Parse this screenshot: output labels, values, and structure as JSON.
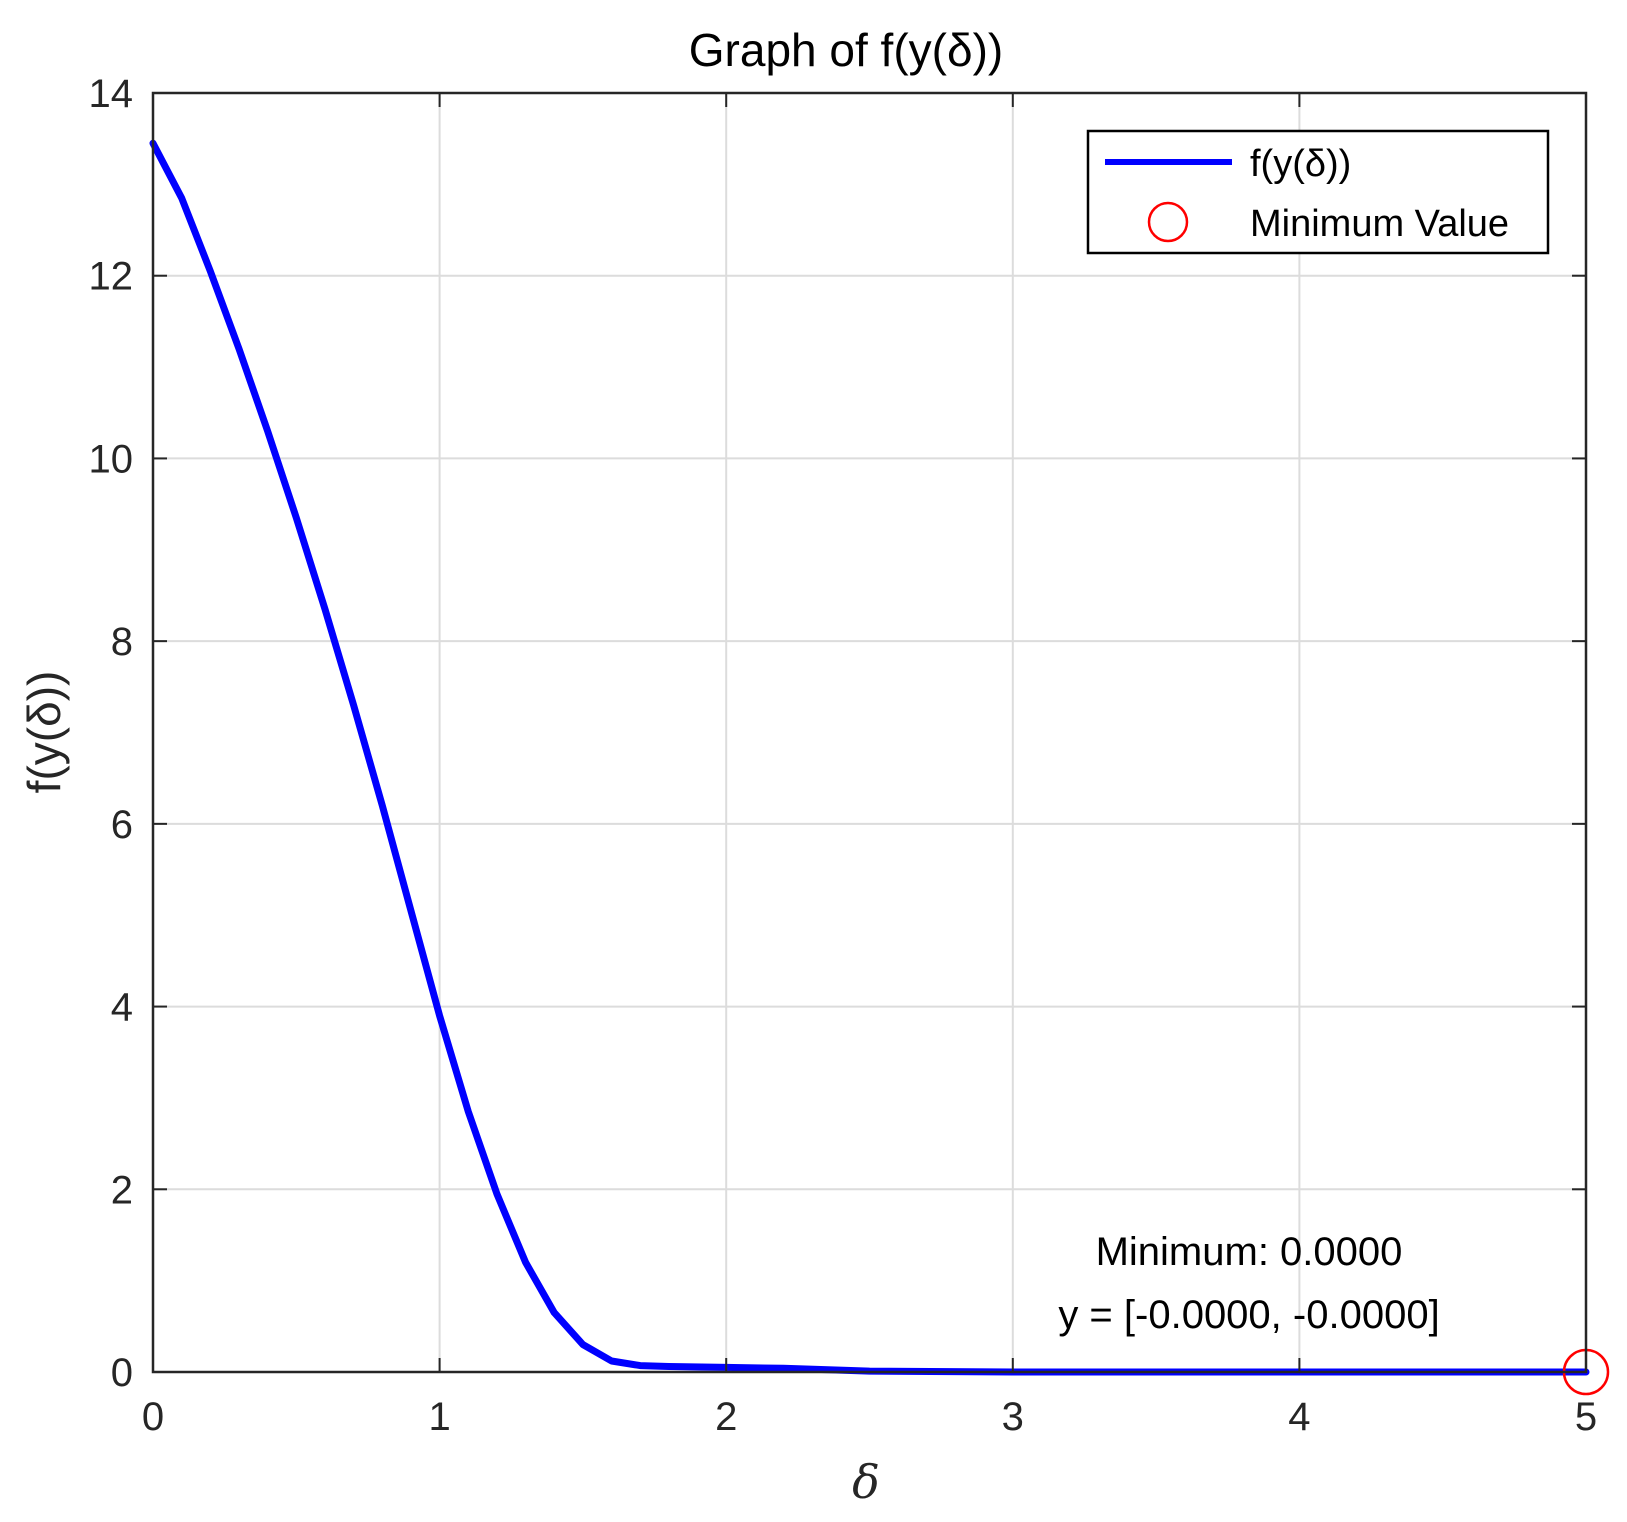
{
  "chart_data": {
    "type": "line",
    "title": "Graph of f(y(δ))",
    "xlabel": "δ",
    "ylabel": "f(y(δ))",
    "xlim": [
      0,
      5
    ],
    "ylim": [
      0,
      14
    ],
    "x_ticks": [
      0,
      1,
      2,
      3,
      4,
      5
    ],
    "y_ticks": [
      0,
      2,
      4,
      6,
      8,
      10,
      12,
      14
    ],
    "x_tick_labels": [
      "0",
      "1",
      "2",
      "3",
      "4",
      "5"
    ],
    "y_tick_labels": [
      "0",
      "2",
      "4",
      "6",
      "8",
      "10",
      "12",
      "14"
    ],
    "grid": true,
    "legend_position": "top-right",
    "series": [
      {
        "name": "f(y(δ))",
        "color": "#0000ff",
        "marker": "none",
        "points": [
          [
            0.0,
            13.45
          ],
          [
            0.1,
            12.85
          ],
          [
            0.2,
            12.05
          ],
          [
            0.3,
            11.2
          ],
          [
            0.4,
            10.3
          ],
          [
            0.5,
            9.35
          ],
          [
            0.6,
            8.35
          ],
          [
            0.7,
            7.3
          ],
          [
            0.8,
            6.2
          ],
          [
            0.9,
            5.05
          ],
          [
            1.0,
            3.9
          ],
          [
            1.1,
            2.85
          ],
          [
            1.2,
            1.95
          ],
          [
            1.3,
            1.2
          ],
          [
            1.4,
            0.65
          ],
          [
            1.5,
            0.3
          ],
          [
            1.6,
            0.12
          ],
          [
            1.7,
            0.07
          ],
          [
            1.8,
            0.06
          ],
          [
            2.0,
            0.05
          ],
          [
            2.2,
            0.04
          ],
          [
            2.5,
            0.01
          ],
          [
            3.0,
            0.0
          ],
          [
            3.5,
            0.0
          ],
          [
            4.0,
            0.0
          ],
          [
            4.5,
            0.0
          ],
          [
            5.0,
            0.0
          ]
        ]
      },
      {
        "name": "Minimum Value",
        "color": "#ff0000",
        "marker": "circle",
        "points": [
          [
            5.0,
            0.0
          ]
        ]
      }
    ],
    "annotations": [
      "Minimum: 0.0000",
      "y = [-0.0000, -0.0000]"
    ]
  }
}
